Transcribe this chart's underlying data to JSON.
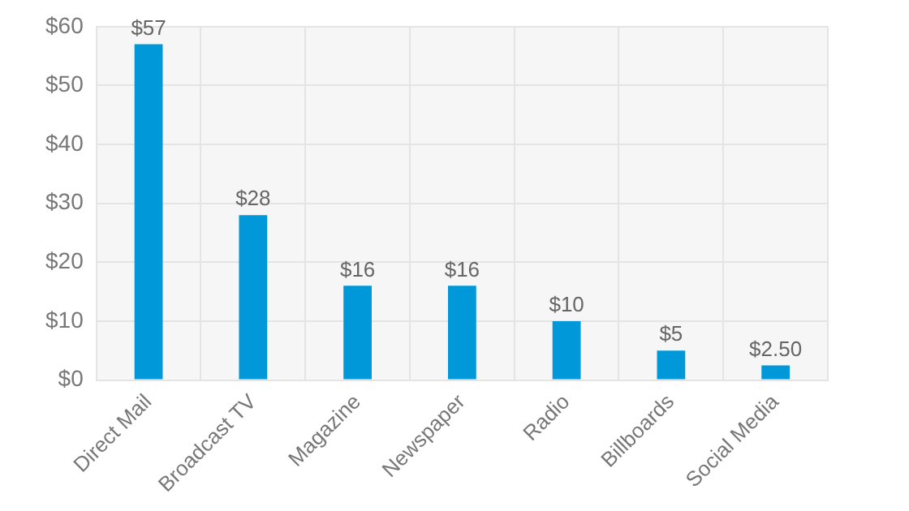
{
  "chart_data": {
    "type": "bar",
    "categories": [
      "Direct Mail",
      "Broadcast TV",
      "Magazine",
      "Newspaper",
      "Radio",
      "Billboards",
      "Social Media"
    ],
    "values": [
      57,
      28,
      16,
      16,
      10,
      5,
      2.5
    ],
    "value_labels": [
      "$57",
      "$28",
      "$16",
      "$16",
      "$10",
      "$5",
      "$2.50"
    ],
    "color": "#0098d8",
    "ylim": [
      0,
      60
    ],
    "yticks": [
      {
        "value": 0,
        "label": "$0"
      },
      {
        "value": 10,
        "label": "$10"
      },
      {
        "value": 20,
        "label": "$20"
      },
      {
        "value": 30,
        "label": "$30"
      },
      {
        "value": 40,
        "label": "$40"
      },
      {
        "value": 50,
        "label": "$50"
      },
      {
        "value": 60,
        "label": "$60"
      }
    ],
    "grid": true,
    "legend": false
  }
}
